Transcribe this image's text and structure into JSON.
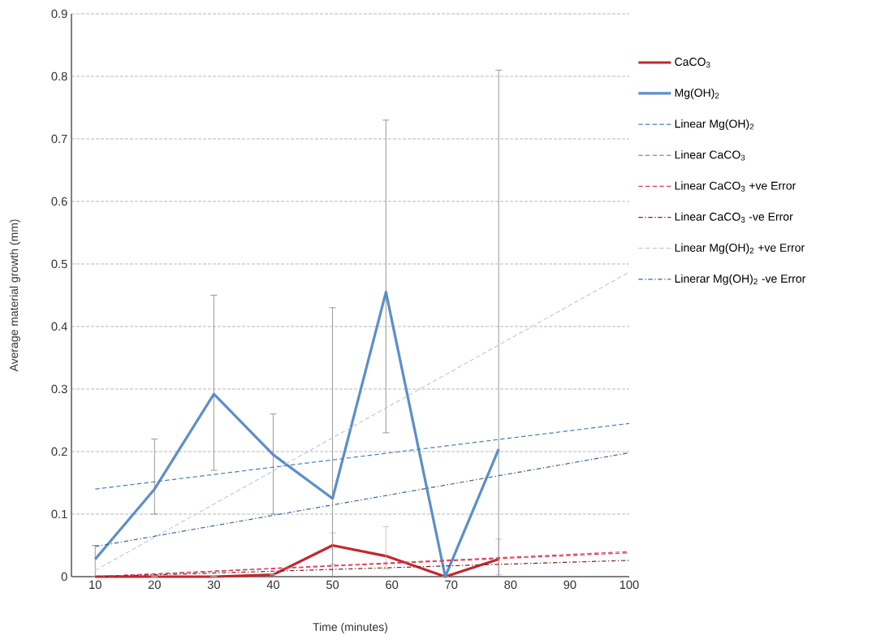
{
  "chart_data": {
    "type": "line",
    "xlabel": "Time (minutes)",
    "ylabel": "Average material growth (mm)",
    "xlim": [
      6,
      100
    ],
    "xticks": [
      10,
      20,
      30,
      40,
      50,
      60,
      70,
      80,
      90,
      100
    ],
    "ylim": [
      0,
      0.9
    ],
    "yticks": [
      0,
      0.1,
      0.2,
      0.3,
      0.4,
      0.5,
      0.6,
      0.7,
      0.8,
      0.9
    ],
    "grid": "y",
    "legend": "right",
    "series": [
      {
        "name": "CaCO$_{3}$",
        "color": "#c0282e",
        "line_style": "solid",
        "x": [
          10,
          20,
          30,
          40,
          50,
          59,
          69,
          78
        ],
        "values": [
          0,
          0,
          0,
          0.003,
          0.05,
          0.033,
          0,
          0.028
        ],
        "errors": [
          null,
          null,
          null,
          null,
          [
            0.02,
            0.07
          ],
          [
            0.012,
            0.08
          ],
          null,
          [
            0.003,
            0.06
          ]
        ]
      },
      {
        "name": "Mg(OH)$_{2}$",
        "color": "#5b8fcb",
        "line_style": "solid",
        "x": [
          10,
          20,
          30,
          40,
          50,
          59,
          69,
          78
        ],
        "values": [
          0.028,
          0.14,
          0.292,
          0.195,
          0.125,
          0.455,
          0,
          0.204
        ],
        "errors": [
          [
            0,
            0.05
          ],
          [
            0.1,
            0.22
          ],
          [
            0.17,
            0.45
          ],
          [
            0.1,
            0.26
          ],
          [
            0,
            0.43
          ],
          [
            0.23,
            0.73
          ],
          null,
          [
            0,
            0.81
          ]
        ]
      },
      {
        "name": "Linear Mg(OH)$_{2}$",
        "color": "#4a7ebb",
        "line_style": "dashed",
        "x": [
          10,
          100
        ],
        "values": [
          0.14,
          0.245
        ]
      },
      {
        "name": "Linear CaCO$_{3}$",
        "color": "#e03c3c",
        "line_style": "dashed",
        "x": [
          10,
          100
        ],
        "values": [
          0,
          0.038
        ]
      },
      {
        "name": "Linear CaCO$_{3}$ +ve Error",
        "color": "#e8356a",
        "line_style": "dashed",
        "x": [
          10,
          100
        ],
        "values": [
          0,
          0.04
        ]
      },
      {
        "name": "Linear CaCO$_{3}$ -ve Error",
        "color": "#8b1a1a",
        "line_style": "dashdot",
        "x": [
          10,
          100
        ],
        "values": [
          0,
          0.026
        ]
      },
      {
        "name": "Linear Mg(OH)$_{2}$ +ve Error",
        "color": "#b9cde8",
        "line_style": "dashed",
        "x": [
          10,
          100
        ],
        "values": [
          0.01,
          0.487
        ]
      },
      {
        "name": "Linerar Mg(OH)$_{2}$ -ve Error",
        "color": "#3d669c",
        "line_style": "dashdot",
        "x": [
          10,
          100
        ],
        "values": [
          0.048,
          0.198
        ]
      }
    ]
  }
}
